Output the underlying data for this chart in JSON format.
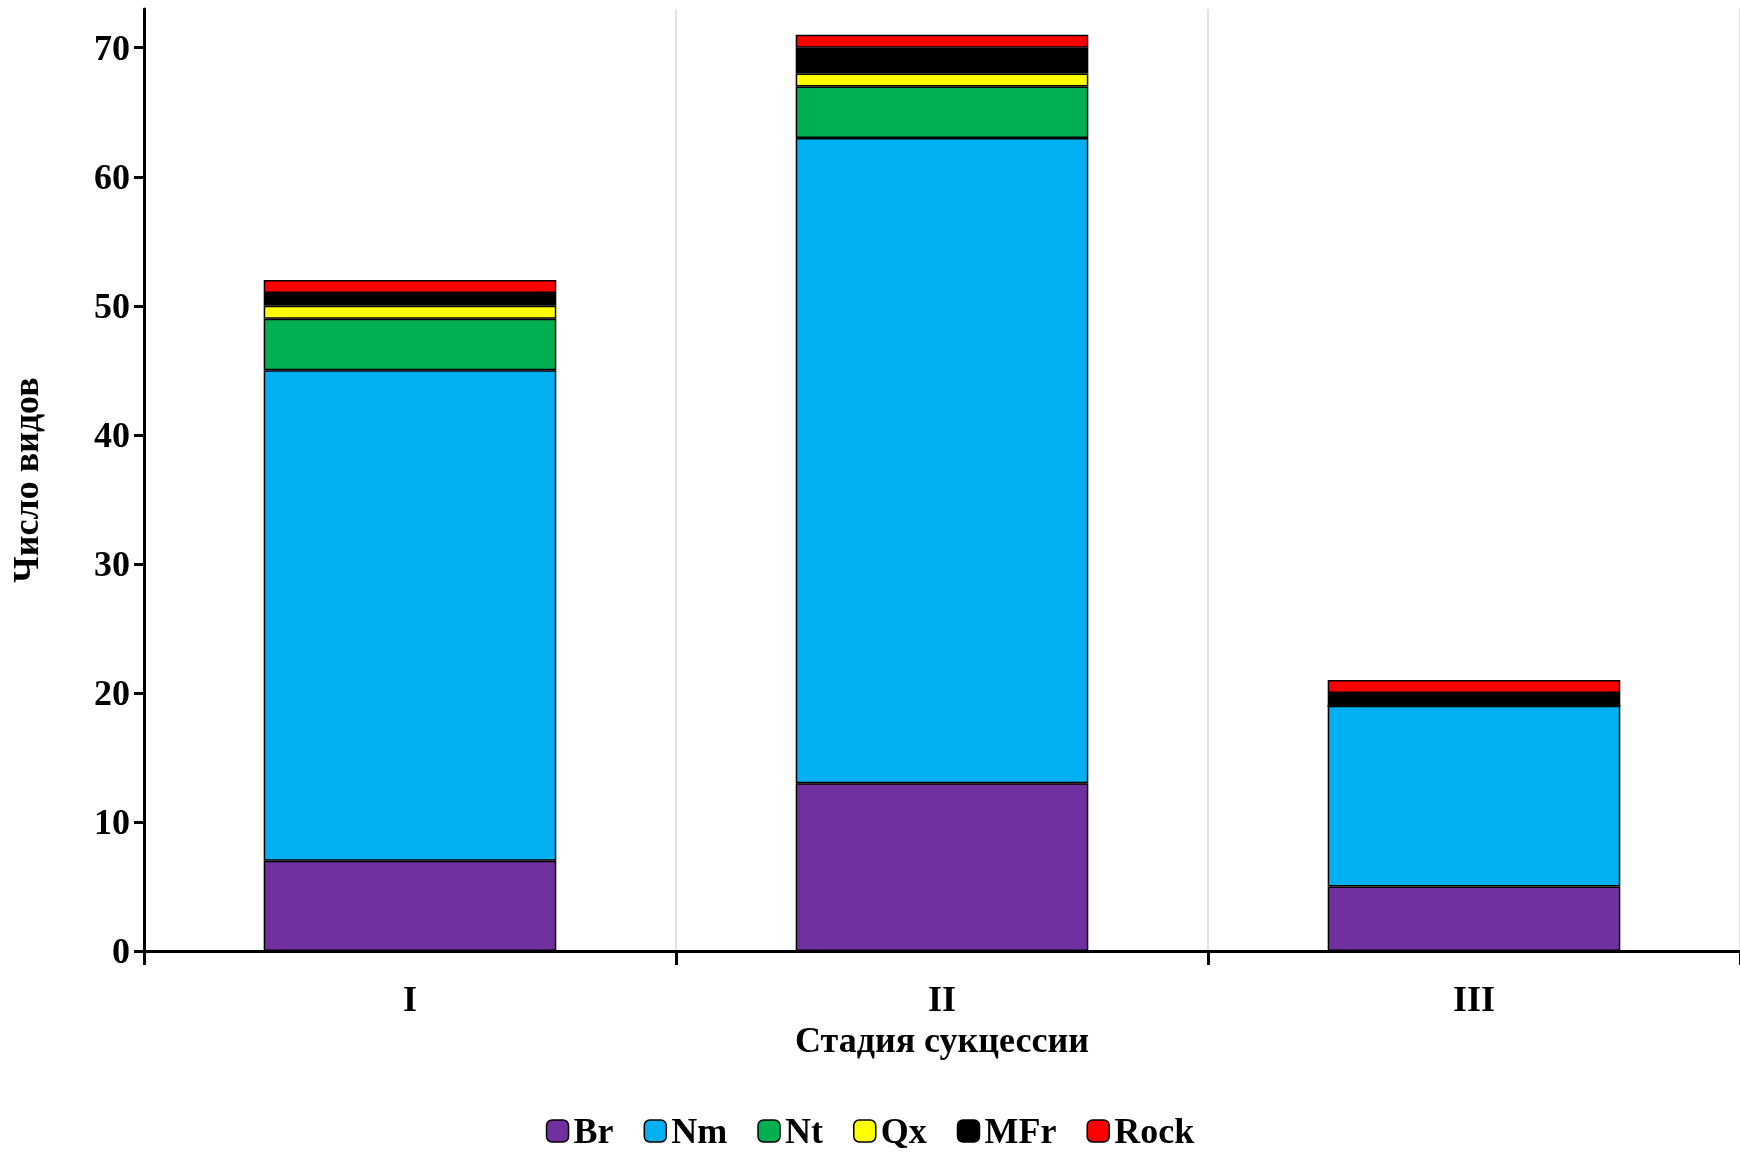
{
  "chart_data": {
    "type": "bar",
    "stacked": true,
    "xlabel": "Стадия сукцессии",
    "ylabel": "Число видов",
    "categories": [
      "I",
      "II",
      "III"
    ],
    "series": [
      {
        "name": "Br",
        "color": "#7030a0",
        "values": [
          7,
          13,
          5
        ]
      },
      {
        "name": "Nm",
        "color": "#00b0f0",
        "values": [
          38,
          50,
          14
        ]
      },
      {
        "name": "Nt",
        "color": "#00b050",
        "values": [
          4,
          4,
          0
        ]
      },
      {
        "name": "Qx",
        "color": "#ffff00",
        "values": [
          1,
          1,
          0
        ]
      },
      {
        "name": "MFr",
        "color": "#000000",
        "values": [
          1,
          2,
          1
        ]
      },
      {
        "name": "Rock",
        "color": "#ff0000",
        "values": [
          1,
          1,
          1
        ]
      }
    ],
    "ylim": [
      0,
      73
    ],
    "yticks": [
      0,
      10,
      20,
      30,
      40,
      50,
      60,
      70
    ],
    "grid": "x",
    "legend": "bottom"
  }
}
